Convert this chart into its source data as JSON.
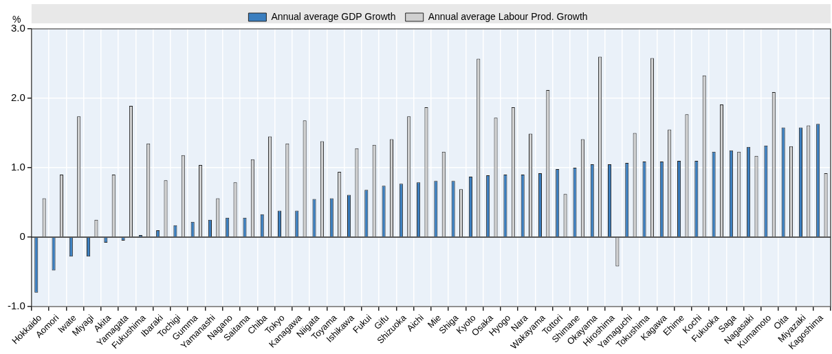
{
  "chart_data": {
    "type": "bar",
    "ylabel": "%",
    "categories": [
      "Hokkaido",
      "Aomori",
      "Iwate",
      "Miyagi",
      "Akita",
      "Yamagata",
      "Fukushima",
      "Ibaraki",
      "Tochigi",
      "Gumma",
      "Yamanashi",
      "Nagano",
      "Saitama",
      "Chiba",
      "Tokyo",
      "Kanagawa",
      "Niigata",
      "Toyama",
      "Ishikawa",
      "Fukui",
      "Gifu",
      "Shizuoka",
      "Aichi",
      "Mie",
      "Shiga",
      "Kyoto",
      "Osaka",
      "Hyogo",
      "Nara",
      "Wakayama",
      "Tottori",
      "Shimane",
      "Okayama",
      "Hiroshima",
      "Yamaguchi",
      "Tokushima",
      "Kagawa",
      "Ehime",
      "Kochi",
      "Fukuoka",
      "Saga",
      "Nagasaki",
      "Kumamoto",
      "Oita",
      "Miyazaki",
      "Kagoshima"
    ],
    "series": [
      {
        "name": "Annual average GDP Growth",
        "color": "#3a7ebf",
        "values": [
          -0.8,
          -0.48,
          -0.28,
          -0.28,
          -0.08,
          -0.05,
          0.03,
          0.1,
          0.17,
          0.22,
          0.25,
          0.28,
          0.28,
          0.33,
          0.38,
          0.38,
          0.55,
          0.56,
          0.61,
          0.68,
          0.74,
          0.77,
          0.79,
          0.81,
          0.81,
          0.87,
          0.89,
          0.9,
          0.9,
          0.92,
          0.98,
          1.0,
          1.05,
          1.05,
          1.07,
          1.09,
          1.09,
          1.1,
          1.1,
          1.23,
          1.25,
          1.3,
          1.32,
          1.58,
          1.58,
          1.63
        ]
      },
      {
        "name": "Annual average Labour Prod. Growth",
        "color": "#d0d0d0",
        "values": [
          0.56,
          0.9,
          1.74,
          0.25,
          0.9,
          1.89,
          1.35,
          0.82,
          1.18,
          1.04,
          0.56,
          0.79,
          1.12,
          1.45,
          1.35,
          1.68,
          1.38,
          0.94,
          1.28,
          1.33,
          1.41,
          1.74,
          1.87,
          1.23,
          0.69,
          2.57,
          1.72,
          1.87,
          1.49,
          2.12,
          0.62,
          1.41,
          2.6,
          -0.42,
          1.5,
          2.58,
          1.55,
          1.77,
          2.33,
          1.91,
          1.23,
          1.17,
          2.09,
          1.31,
          1.61,
          0.92
        ]
      }
    ],
    "ylim": [
      -1,
      3
    ],
    "yticks": [
      {
        "value": -1,
        "label": "-1.0"
      },
      {
        "value": 0,
        "label": "0"
      },
      {
        "value": 1,
        "label": "1.0"
      },
      {
        "value": 2,
        "label": "2.0"
      },
      {
        "value": 3,
        "label": "3.0"
      }
    ],
    "grid": true,
    "legend": "top"
  }
}
